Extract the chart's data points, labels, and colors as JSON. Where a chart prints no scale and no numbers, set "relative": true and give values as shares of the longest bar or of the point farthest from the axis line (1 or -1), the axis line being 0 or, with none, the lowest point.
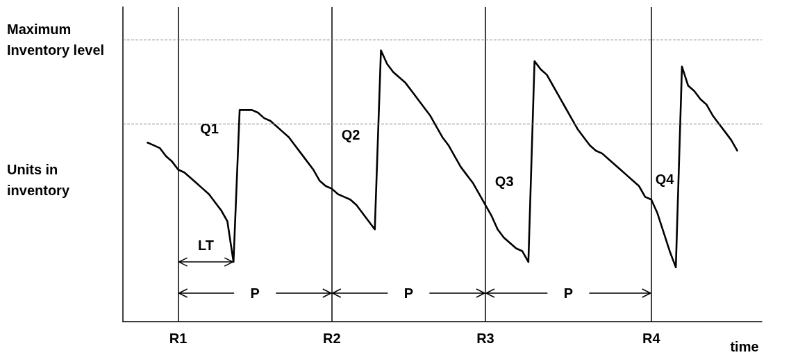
{
  "chart_data": {
    "type": "line",
    "relative": true,
    "xlabel": "time",
    "ylabel": "Units in inventory",
    "categories": [
      null,
      null,
      null,
      null,
      null,
      null,
      null,
      null,
      null,
      "R1",
      null,
      null,
      null,
      null,
      null,
      null,
      null,
      null,
      null,
      null,
      null,
      null,
      null,
      null,
      null,
      null,
      null,
      null,
      null,
      null,
      null,
      null,
      null,
      null,
      "R2",
      null,
      null,
      null,
      null,
      null,
      null,
      null,
      null,
      null,
      null,
      null,
      null,
      null,
      null,
      null,
      null,
      null,
      null,
      null,
      null,
      null,
      null,
      null,
      null,
      "R3",
      null,
      null,
      null,
      null,
      null,
      null,
      null,
      null,
      null,
      null,
      null,
      null,
      null,
      null,
      null,
      null,
      null,
      null,
      null,
      null,
      null,
      null,
      null,
      null,
      null,
      null,
      "R4",
      null,
      null,
      null,
      null,
      null,
      null,
      null,
      null,
      null,
      null,
      null,
      null,
      null,
      null,
      null,
      null,
      null,
      null
    ],
    "series": [
      {
        "color": "#000000",
        "values": [
          null,
          null,
          null,
          null,
          0.66,
          0.65,
          0.64,
          0.61,
          0.59,
          0.56,
          0.55,
          0.53,
          0.51,
          0.49,
          0.47,
          0.44,
          0.41,
          0.37,
          0.22,
          0.78,
          0.78,
          0.78,
          0.77,
          0.75,
          0.74,
          0.72,
          0.7,
          0.68,
          0.65,
          0.62,
          0.59,
          0.56,
          0.52,
          0.5,
          0.49,
          0.47,
          0.46,
          0.45,
          0.43,
          0.4,
          0.37,
          0.34,
          1.0,
          0.95,
          0.92,
          0.9,
          0.88,
          0.85,
          0.82,
          0.79,
          0.76,
          0.72,
          0.68,
          0.65,
          0.61,
          0.57,
          0.54,
          0.51,
          0.47,
          0.43,
          0.39,
          0.34,
          0.31,
          0.29,
          0.27,
          0.26,
          0.22,
          0.96,
          0.93,
          0.91,
          0.87,
          0.83,
          0.79,
          0.75,
          0.71,
          0.68,
          0.65,
          0.63,
          0.62,
          0.6,
          0.58,
          0.56,
          0.54,
          0.52,
          0.5,
          0.46,
          0.45,
          0.4,
          0.33,
          0.26,
          0.2,
          0.94,
          0.87,
          0.85,
          0.82,
          0.8,
          0.76,
          0.73,
          0.7,
          0.67,
          0.63,
          null,
          null,
          null,
          null
        ]
      }
    ],
    "ref_lines": [
      {
        "axis": "x",
        "value": "R1",
        "color": "#000000"
      },
      {
        "axis": "x",
        "value": "R2",
        "color": "#000000"
      },
      {
        "axis": "x",
        "value": "R3",
        "color": "#000000"
      },
      {
        "axis": "x",
        "value": "R4",
        "color": "#000000"
      },
      {
        "axis": "y",
        "value": 1.04,
        "label": "Maximum Inventory level",
        "color": "#808080",
        "line_style": "dashed"
      },
      {
        "axis": "y",
        "value": 0.73,
        "color": "#808080",
        "line_style": "dashed"
      }
    ],
    "annotations": [
      "Q1",
      "Q2",
      "Q3",
      "Q4",
      "LT",
      "P",
      "P",
      "P"
    ],
    "marker": "none",
    "line_style": "solid",
    "grid": false
  }
}
